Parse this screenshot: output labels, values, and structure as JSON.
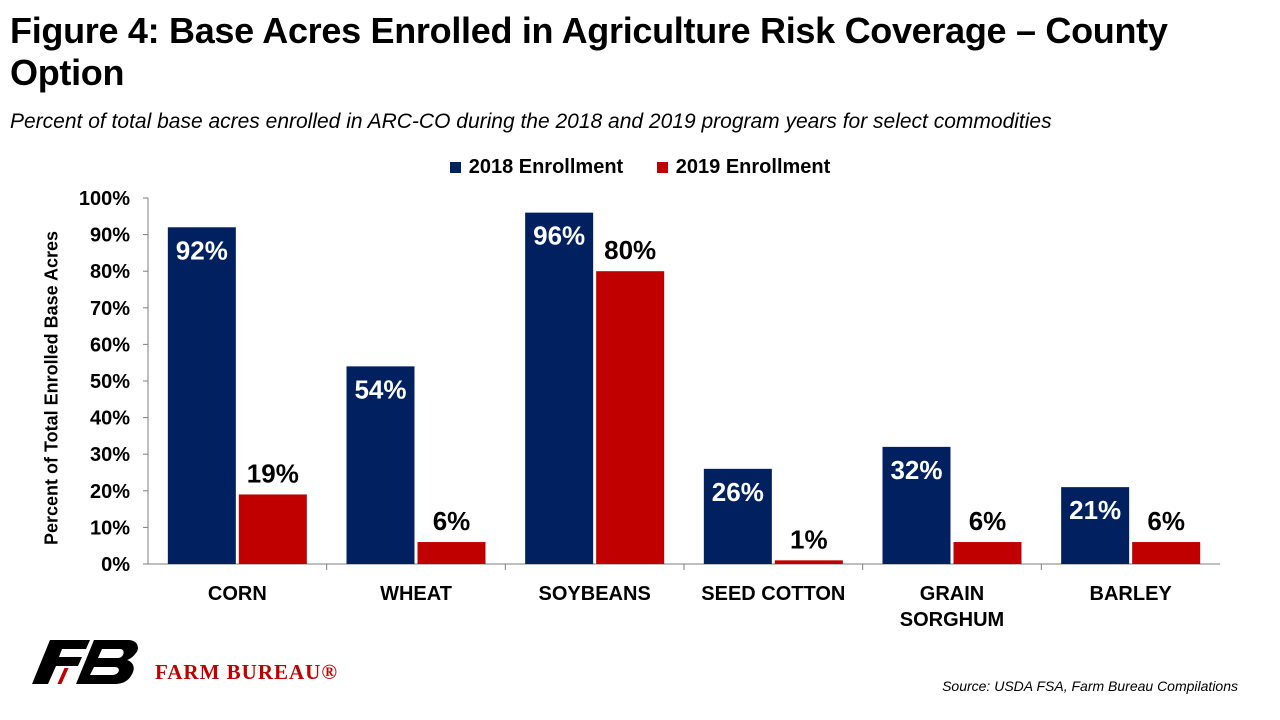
{
  "title": "Figure 4: Base Acres Enrolled in Agriculture Risk Coverage – County Option",
  "subtitle": "Percent of total base acres enrolled in ARC-CO during the 2018 and 2019 program years for select commodities",
  "source": "Source: USDA FSA, Farm Bureau Compilations",
  "brand": {
    "name": "FARM BUREAU®"
  },
  "colors": {
    "series_2018": "#002060",
    "series_2019": "#c00000"
  },
  "chart_data": {
    "type": "bar",
    "categories": [
      "CORN",
      "WHEAT",
      "SOYBEANS",
      "SEED COTTON",
      "GRAIN SORGHUM",
      "BARLEY"
    ],
    "category_lines": [
      [
        "CORN"
      ],
      [
        "WHEAT"
      ],
      [
        "SOYBEANS"
      ],
      [
        "SEED COTTON"
      ],
      [
        "GRAIN",
        "SORGHUM"
      ],
      [
        "BARLEY"
      ]
    ],
    "series": [
      {
        "name": "2018 Enrollment",
        "values": [
          92,
          54,
          96,
          26,
          32,
          21
        ],
        "labels": [
          "92%",
          "54%",
          "96%",
          "26%",
          "32%",
          "21%"
        ]
      },
      {
        "name": "2019 Enrollment",
        "values": [
          19,
          6,
          80,
          1,
          6,
          6
        ],
        "labels": [
          "19%",
          "6%",
          "80%",
          "1%",
          "6%",
          "6%"
        ]
      }
    ],
    "ylabel": "Percent of Total Enrolled Base Acres",
    "xlabel": "",
    "ylim": [
      0,
      100
    ],
    "yticks": [
      "0%",
      "10%",
      "20%",
      "30%",
      "40%",
      "50%",
      "60%",
      "70%",
      "80%",
      "90%",
      "100%"
    ],
    "grid": false,
    "legend_position": "top-center"
  }
}
